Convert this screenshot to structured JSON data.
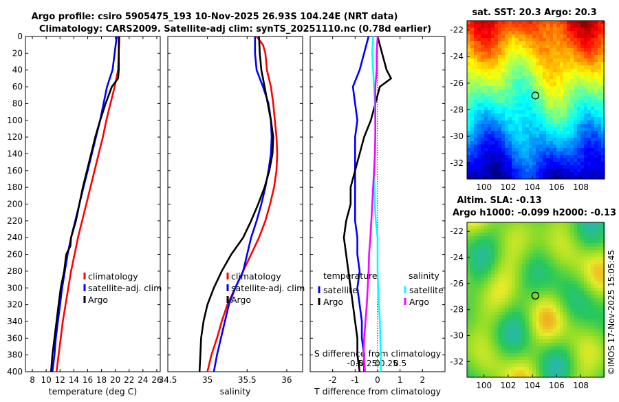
{
  "title": {
    "line1": "Argo profile: csiro 5905475_193 10-Nov-2025 26.93S 104.24E (NRT data)",
    "line2": "Climatology: CARS2009. Satellite-adj clim: synTS_20251110.nc (0.78d earlier)"
  },
  "watermark": "©IMOS 17-Nov-2025 15:05:45",
  "colors": {
    "climatology": "#ff0000",
    "satellite": "#0000ff",
    "argo": "#000000",
    "sal_argo": "#ff00ff",
    "sal_satellite": "#00ffff"
  },
  "chart_data": [
    {
      "type": "line",
      "name": "temperature",
      "xlabel": "temperature (deg C)",
      "xlim": [
        7,
        26.5
      ],
      "ylim": [
        0,
        400
      ],
      "xticks": [
        8,
        10,
        12,
        14,
        16,
        18,
        20,
        22,
        24,
        26
      ],
      "yticks": [
        0,
        20,
        40,
        60,
        80,
        100,
        120,
        140,
        160,
        180,
        200,
        220,
        240,
        260,
        280,
        300,
        320,
        340,
        360,
        380,
        400
      ],
      "legend": [
        "climatology",
        "satellite-adj. clim",
        "Argo"
      ],
      "series": [
        {
          "name": "climatology",
          "color": "#ff0000",
          "depth": [
            0,
            20,
            40,
            60,
            80,
            100,
            120,
            140,
            160,
            180,
            200,
            220,
            240,
            260,
            280,
            300,
            320,
            340,
            360,
            380,
            400
          ],
          "values": [
            20.6,
            20.5,
            20.4,
            19.9,
            19.3,
            18.7,
            18.2,
            17.6,
            17.0,
            16.4,
            15.8,
            15.2,
            14.6,
            14.1,
            13.6,
            13.2,
            12.8,
            12.4,
            12.1,
            11.8,
            11.5
          ]
        },
        {
          "name": "satellite-adj. clim",
          "color": "#0000ff",
          "depth": [
            0,
            20,
            40,
            60,
            80,
            100,
            120,
            140,
            160,
            180,
            200,
            220,
            240,
            260,
            280,
            300,
            320,
            340,
            360,
            380,
            400
          ],
          "values": [
            20.2,
            19.9,
            19.6,
            18.8,
            18.3,
            17.8,
            17.2,
            16.6,
            16.0,
            15.4,
            14.8,
            14.2,
            13.6,
            13.1,
            12.7,
            12.3,
            12.0,
            11.7,
            11.4,
            11.2,
            10.9
          ]
        },
        {
          "name": "Argo",
          "color": "#000000",
          "depth": [
            0,
            20,
            40,
            50,
            60,
            80,
            100,
            120,
            140,
            160,
            180,
            200,
            220,
            240,
            250,
            260,
            280,
            300,
            320,
            340,
            360,
            380,
            400
          ],
          "values": [
            20.5,
            20.5,
            20.5,
            20.4,
            19.5,
            18.6,
            17.8,
            17.1,
            16.5,
            15.9,
            15.3,
            14.8,
            14.3,
            13.6,
            13.5,
            12.9,
            12.6,
            12.1,
            11.8,
            11.5,
            11.2,
            10.9,
            10.7
          ]
        }
      ]
    },
    {
      "type": "line",
      "name": "salinity",
      "xlabel": "salinity",
      "xlim": [
        34.5,
        36.2
      ],
      "ylim": [
        0,
        400
      ],
      "xticks": [
        34.5,
        35,
        35.5,
        36
      ],
      "xticklabels": [
        "34.5",
        "35",
        "35.5",
        "36"
      ],
      "legend": [
        "climatology",
        "satellite-adj. clim",
        "Argo"
      ],
      "series": [
        {
          "name": "climatology",
          "color": "#ff0000",
          "depth": [
            0,
            10,
            20,
            40,
            60,
            80,
            100,
            120,
            140,
            160,
            180,
            200,
            220,
            240,
            260,
            280,
            300,
            320,
            340,
            360,
            380,
            400
          ],
          "values": [
            35.62,
            35.7,
            35.73,
            35.75,
            35.8,
            35.83,
            35.85,
            35.87,
            35.88,
            35.87,
            35.84,
            35.79,
            35.73,
            35.65,
            35.55,
            35.45,
            35.35,
            35.25,
            35.18,
            35.12,
            35.05,
            35.0
          ]
        },
        {
          "name": "satellite-adj. clim",
          "color": "#0000ff",
          "depth": [
            0,
            20,
            40,
            50,
            60,
            80,
            100,
            120,
            140,
            160,
            180,
            200,
            220,
            240,
            260,
            280,
            300,
            320,
            340,
            360,
            380,
            400
          ],
          "values": [
            35.6,
            35.6,
            35.62,
            35.66,
            35.7,
            35.77,
            35.8,
            35.81,
            35.8,
            35.77,
            35.73,
            35.68,
            35.62,
            35.55,
            35.5,
            35.45,
            35.35,
            35.27,
            35.22,
            35.17,
            35.12,
            35.08
          ]
        },
        {
          "name": "Argo",
          "color": "#000000",
          "depth": [
            0,
            20,
            40,
            60,
            80,
            100,
            120,
            140,
            160,
            180,
            200,
            220,
            240,
            260,
            280,
            300,
            320,
            340,
            360,
            380,
            400
          ],
          "values": [
            35.65,
            35.66,
            35.68,
            35.72,
            35.76,
            35.8,
            35.83,
            35.82,
            35.78,
            35.72,
            35.64,
            35.55,
            35.45,
            35.3,
            35.18,
            35.08,
            35.0,
            34.95,
            34.92,
            34.91,
            34.9
          ]
        }
      ]
    },
    {
      "type": "line",
      "name": "difference",
      "xlabel": "T difference from climatology",
      "xlabel_top": "S difference from climatology",
      "xlim": [
        -3,
        3
      ],
      "ylim": [
        0,
        400
      ],
      "xticks": [
        -2,
        -1,
        0,
        1,
        2
      ],
      "xticks_s": [
        -0.5,
        -0.25,
        0,
        0.25,
        0.5
      ],
      "xticklabels_s": [
        "-0.5",
        "-0.25",
        "0",
        "0.25",
        "0.5"
      ],
      "legend_left": {
        "title": "temperature",
        "items": [
          "satellite",
          "Argo"
        ]
      },
      "legend_right": {
        "title": "salinity",
        "items": [
          "satellite",
          "Argo"
        ]
      },
      "series": [
        {
          "name": "T satellite",
          "color": "#0000ff",
          "depth": [
            0,
            20,
            40,
            60,
            80,
            100,
            120,
            140,
            160,
            180,
            200,
            220,
            240,
            260,
            280,
            300,
            320,
            340,
            360,
            380,
            400
          ],
          "values": [
            -0.4,
            -0.6,
            -0.8,
            -1.1,
            -1.0,
            -0.9,
            -1.0,
            -1.0,
            -1.0,
            -1.0,
            -1.0,
            -1.0,
            -0.9,
            -0.9,
            -0.8,
            -0.9,
            -0.8,
            -0.7,
            -0.7,
            -0.6,
            -0.6
          ]
        },
        {
          "name": "T Argo",
          "color": "#000000",
          "depth": [
            0,
            20,
            40,
            50,
            60,
            80,
            100,
            120,
            140,
            160,
            180,
            200,
            220,
            240,
            260,
            280,
            300,
            320,
            340,
            360,
            380,
            400
          ],
          "values": [
            0.0,
            0.2,
            0.4,
            0.6,
            0.1,
            -0.1,
            -0.3,
            -0.6,
            -0.8,
            -1.0,
            -1.2,
            -1.2,
            -1.4,
            -1.5,
            -1.4,
            -1.3,
            -1.2,
            -1.1,
            -1.0,
            -0.9,
            -0.9,
            -0.8
          ]
        },
        {
          "name": "S satellite",
          "color": "#00ffff",
          "depth": [
            0,
            20,
            40,
            60,
            80,
            100,
            120,
            140,
            160,
            180,
            200,
            220,
            240,
            260,
            280,
            300,
            320,
            340,
            360,
            380,
            400
          ],
          "values": [
            -0.1,
            -0.12,
            -0.1,
            -0.08,
            -0.06,
            -0.05,
            -0.05,
            -0.06,
            -0.07,
            -0.08,
            -0.06,
            -0.04,
            0.0,
            0.0,
            0.0,
            0.01,
            0.03,
            0.05,
            0.06,
            0.07,
            0.07
          ]
        },
        {
          "name": "S Argo",
          "color": "#ff00ff",
          "depth": [
            0,
            20,
            40,
            60,
            80,
            100,
            120,
            140,
            160,
            180,
            200,
            220,
            240,
            260,
            280,
            300,
            320,
            340,
            360,
            380,
            400
          ],
          "values": [
            0.0,
            -0.02,
            -0.02,
            -0.05,
            -0.05,
            -0.05,
            -0.05,
            -0.06,
            -0.08,
            -0.1,
            -0.12,
            -0.14,
            -0.16,
            -0.19,
            -0.2,
            -0.22,
            -0.24,
            -0.27,
            -0.3,
            -0.31,
            -0.28
          ]
        }
      ]
    },
    {
      "type": "heatmap",
      "name": "sst",
      "title": "sat. SST: 20.3 Argo: 20.3",
      "xticks": [
        100,
        102,
        104,
        106,
        108
      ],
      "yticks": [
        -22,
        -24,
        -26,
        -28,
        -30,
        -32
      ],
      "xlim": [
        98.6,
        109.9
      ],
      "ylim": [
        -33.2,
        -21.3
      ],
      "marker": {
        "lon": 104.24,
        "lat": -26.93
      }
    },
    {
      "type": "heatmap",
      "name": "sla",
      "title_line1": "Altim. SLA: -0.13",
      "title_line2": "Argo h1000: -0.099 h2000: -0.13",
      "xticks": [
        100,
        102,
        104,
        106,
        108
      ],
      "yticks": [
        -22,
        -24,
        -26,
        -28,
        -30,
        -32
      ],
      "xlim": [
        98.6,
        109.9
      ],
      "ylim": [
        -33.2,
        -21.3
      ],
      "marker": {
        "lon": 104.24,
        "lat": -26.93
      }
    }
  ]
}
